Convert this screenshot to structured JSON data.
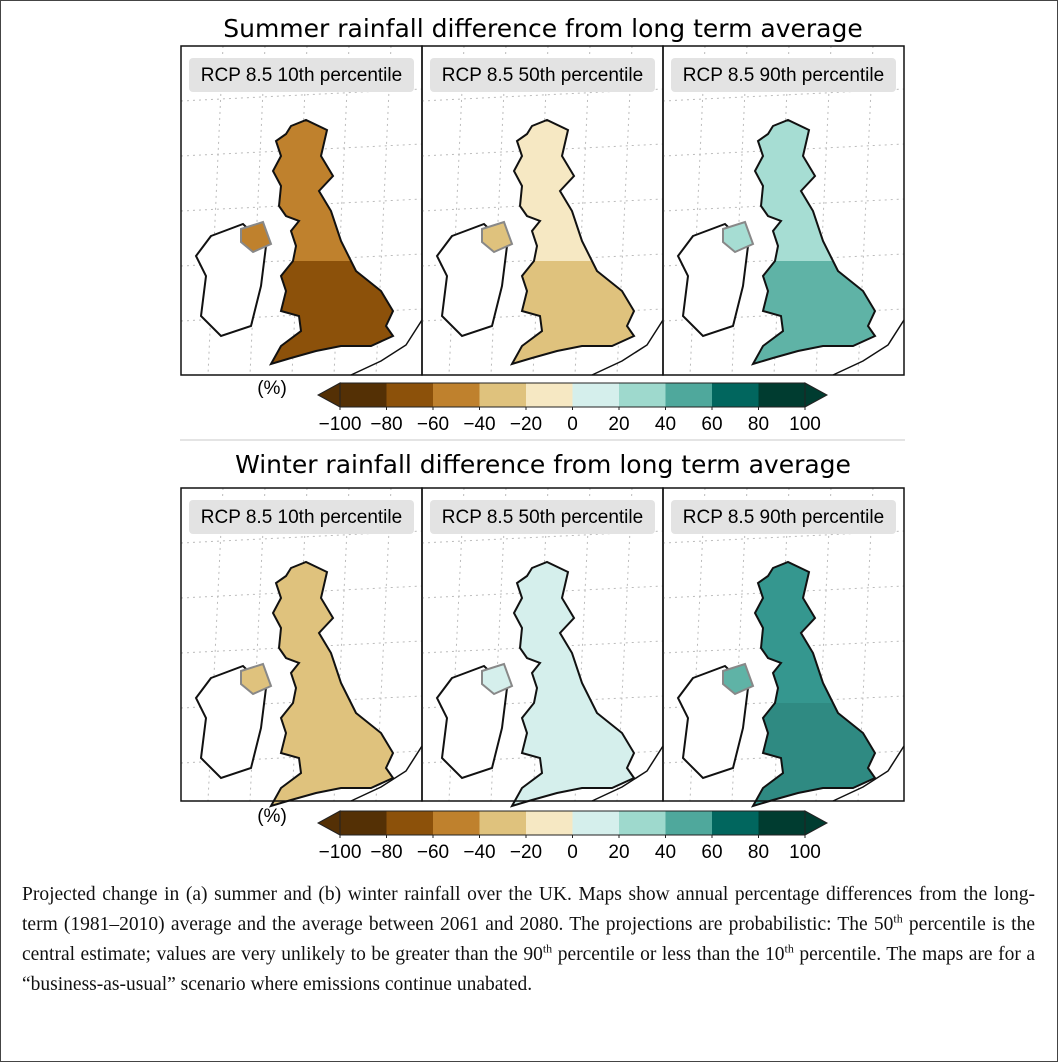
{
  "figures": [
    {
      "title": "Summer rainfall difference from long term average",
      "panels": [
        {
          "label": "RCP 8.5 10th percentile",
          "colors": [
            "#bf812d",
            "#8c510a",
            "#bf812d"
          ]
        },
        {
          "label": "RCP 8.5 50th percentile",
          "colors": [
            "#f6e8c3",
            "#dfc27d",
            "#dfc27d"
          ]
        },
        {
          "label": "RCP 8.5 90th percentile",
          "colors": [
            "#a6ddd3",
            "#5fb3a6",
            "#a6ddd3"
          ]
        }
      ],
      "colorbar": {
        "label": "(%)",
        "lim": [
          -100,
          100
        ],
        "colors": [
          "#543005",
          "#8c510a",
          "#bf812d",
          "#dfc27d",
          "#f6e8c3",
          "#d5efec",
          "#9ed9cd",
          "#4fa89c",
          "#01665e",
          "#003c30"
        ],
        "ticks": [
          {
            "value": -100,
            "label": "−100"
          },
          {
            "value": -80,
            "label": "−80"
          },
          {
            "value": -60,
            "label": "−60"
          },
          {
            "value": -40,
            "label": "−40"
          },
          {
            "value": -20,
            "label": "−20"
          },
          0,
          20,
          40,
          60,
          80,
          100
        ]
      }
    },
    {
      "title": "Winter rainfall difference from long term average",
      "panels": [
        {
          "label": "RCP 8.5 10th percentile",
          "colors": [
            "#dfc27d",
            "#dfc27d",
            "#dfc27d"
          ]
        },
        {
          "label": "RCP 8.5 50th percentile",
          "colors": [
            "#d5efec",
            "#d5efec",
            "#d5efec"
          ]
        },
        {
          "label": "RCP 8.5 90th percentile",
          "colors": [
            "#35978f",
            "#2f8a82",
            "#5fb3a6"
          ]
        }
      ],
      "colorbar": {
        "label": "(%)",
        "lim": [
          -100,
          100
        ],
        "colors": [
          "#543005",
          "#8c510a",
          "#bf812d",
          "#dfc27d",
          "#f6e8c3",
          "#d5efec",
          "#9ed9cd",
          "#4fa89c",
          "#01665e",
          "#003c30"
        ],
        "ticks": [
          {
            "value": -100,
            "label": "−100"
          },
          {
            "value": -80,
            "label": "−80"
          },
          {
            "value": -60,
            "label": "−60"
          },
          {
            "value": -40,
            "label": "−40"
          },
          {
            "value": -20,
            "label": "−20"
          },
          0,
          20,
          40,
          60,
          80,
          100
        ]
      }
    }
  ],
  "caption": {
    "parts": [
      "Projected change in (a) summer and (b) winter rainfall over the UK. Maps show annual percentage differences from the long-term (1981–2010) average and the average between 2061 and 2080. The projections are probabilistic: The 50",
      " percentile is the central estimate; values are very unlikely to be greater than the 90",
      " percentile or less than the 10",
      " percentile. The maps are for a “business-as-usual” scenario where emissions continue unabated."
    ],
    "superscripts": [
      "th",
      "th",
      "th"
    ]
  }
}
